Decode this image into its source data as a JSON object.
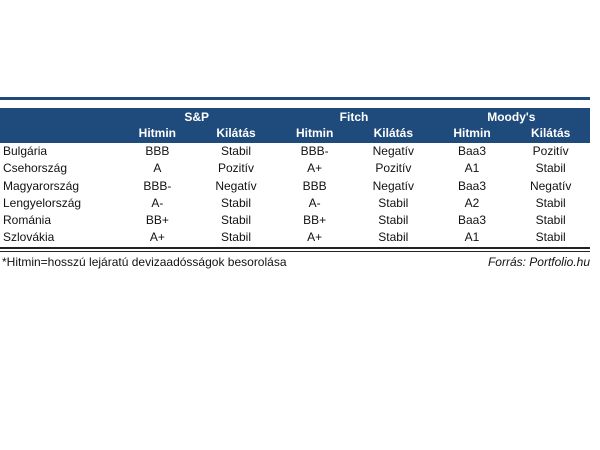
{
  "colors": {
    "header_background": "#1f4b7c",
    "header_text": "#ffffff",
    "body_text": "#111111",
    "rule": "#222222",
    "page_background": "#ffffff"
  },
  "chart_data": {
    "type": "table",
    "agency_groups": [
      "S&P",
      "Fitch",
      "Moody's"
    ],
    "subheaders": [
      "Hitmin",
      "Kilátás",
      "Hitmin",
      "Kilátás",
      "Hitmin",
      "Kilátás"
    ],
    "rows": [
      {
        "country": "Bulgária",
        "values": [
          "BBB",
          "Stabil",
          "BBB-",
          "Negatív",
          "Baa3",
          "Pozitív"
        ]
      },
      {
        "country": "Csehország",
        "values": [
          "A",
          "Pozitív",
          "A+",
          "Pozitív",
          "A1",
          "Stabil"
        ]
      },
      {
        "country": "Magyarország",
        "values": [
          "BBB-",
          "Negatív",
          "BBB",
          "Negatív",
          "Baa3",
          "Negatív"
        ]
      },
      {
        "country": "Lengyelország",
        "values": [
          "A-",
          "Stabil",
          "A-",
          "Stabil",
          "A2",
          "Stabil"
        ]
      },
      {
        "country": "Románia",
        "values": [
          "BB+",
          "Stabil",
          "BB+",
          "Stabil",
          "Baa3",
          "Stabil"
        ]
      },
      {
        "country": "Szlovákia",
        "values": [
          "A+",
          "Stabil",
          "A+",
          "Stabil",
          "A1",
          "Stabil"
        ]
      }
    ],
    "footnote": "*Hitmin=hosszú lejáratú devizaadósságok besorolása",
    "source": "Forrás: Portfolio.hu"
  }
}
